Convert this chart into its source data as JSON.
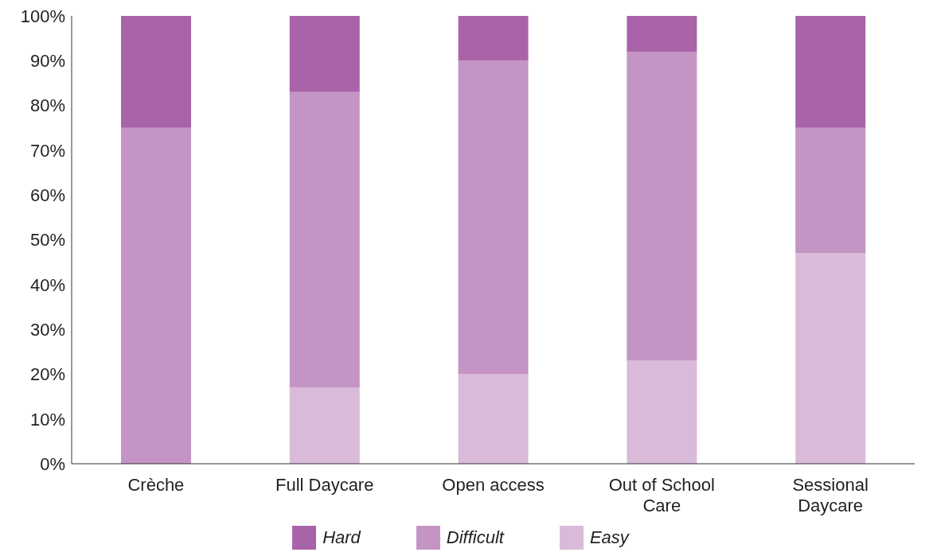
{
  "chart_data": {
    "type": "bar",
    "stacked": true,
    "categories": [
      "Crèche",
      "Full Daycare",
      "Open access",
      "Out of School Care",
      "Sessional Daycare"
    ],
    "series": [
      {
        "name": "Easy",
        "color": "#d9bbd9",
        "values": [
          0,
          17,
          20,
          23,
          47
        ]
      },
      {
        "name": "Difficult",
        "color": "#c495c4",
        "values": [
          75,
          66,
          70,
          69,
          28
        ]
      },
      {
        "name": "Hard",
        "color": "#a964a9",
        "values": [
          25,
          17,
          10,
          8,
          25
        ]
      }
    ],
    "ylim": [
      0,
      100
    ],
    "yticks": [
      {
        "value": 0,
        "label": "0%"
      },
      {
        "value": 10,
        "label": "10%"
      },
      {
        "value": 20,
        "label": "20%"
      },
      {
        "value": 30,
        "label": "30%"
      },
      {
        "value": 40,
        "label": "40%"
      },
      {
        "value": 50,
        "label": "50%"
      },
      {
        "value": 60,
        "label": "60%"
      },
      {
        "value": 70,
        "label": "70%"
      },
      {
        "value": 80,
        "label": "80%"
      },
      {
        "value": 90,
        "label": "90%"
      },
      {
        "value": 100,
        "label": "100%"
      }
    ],
    "grid": false,
    "legend": "bottom"
  }
}
